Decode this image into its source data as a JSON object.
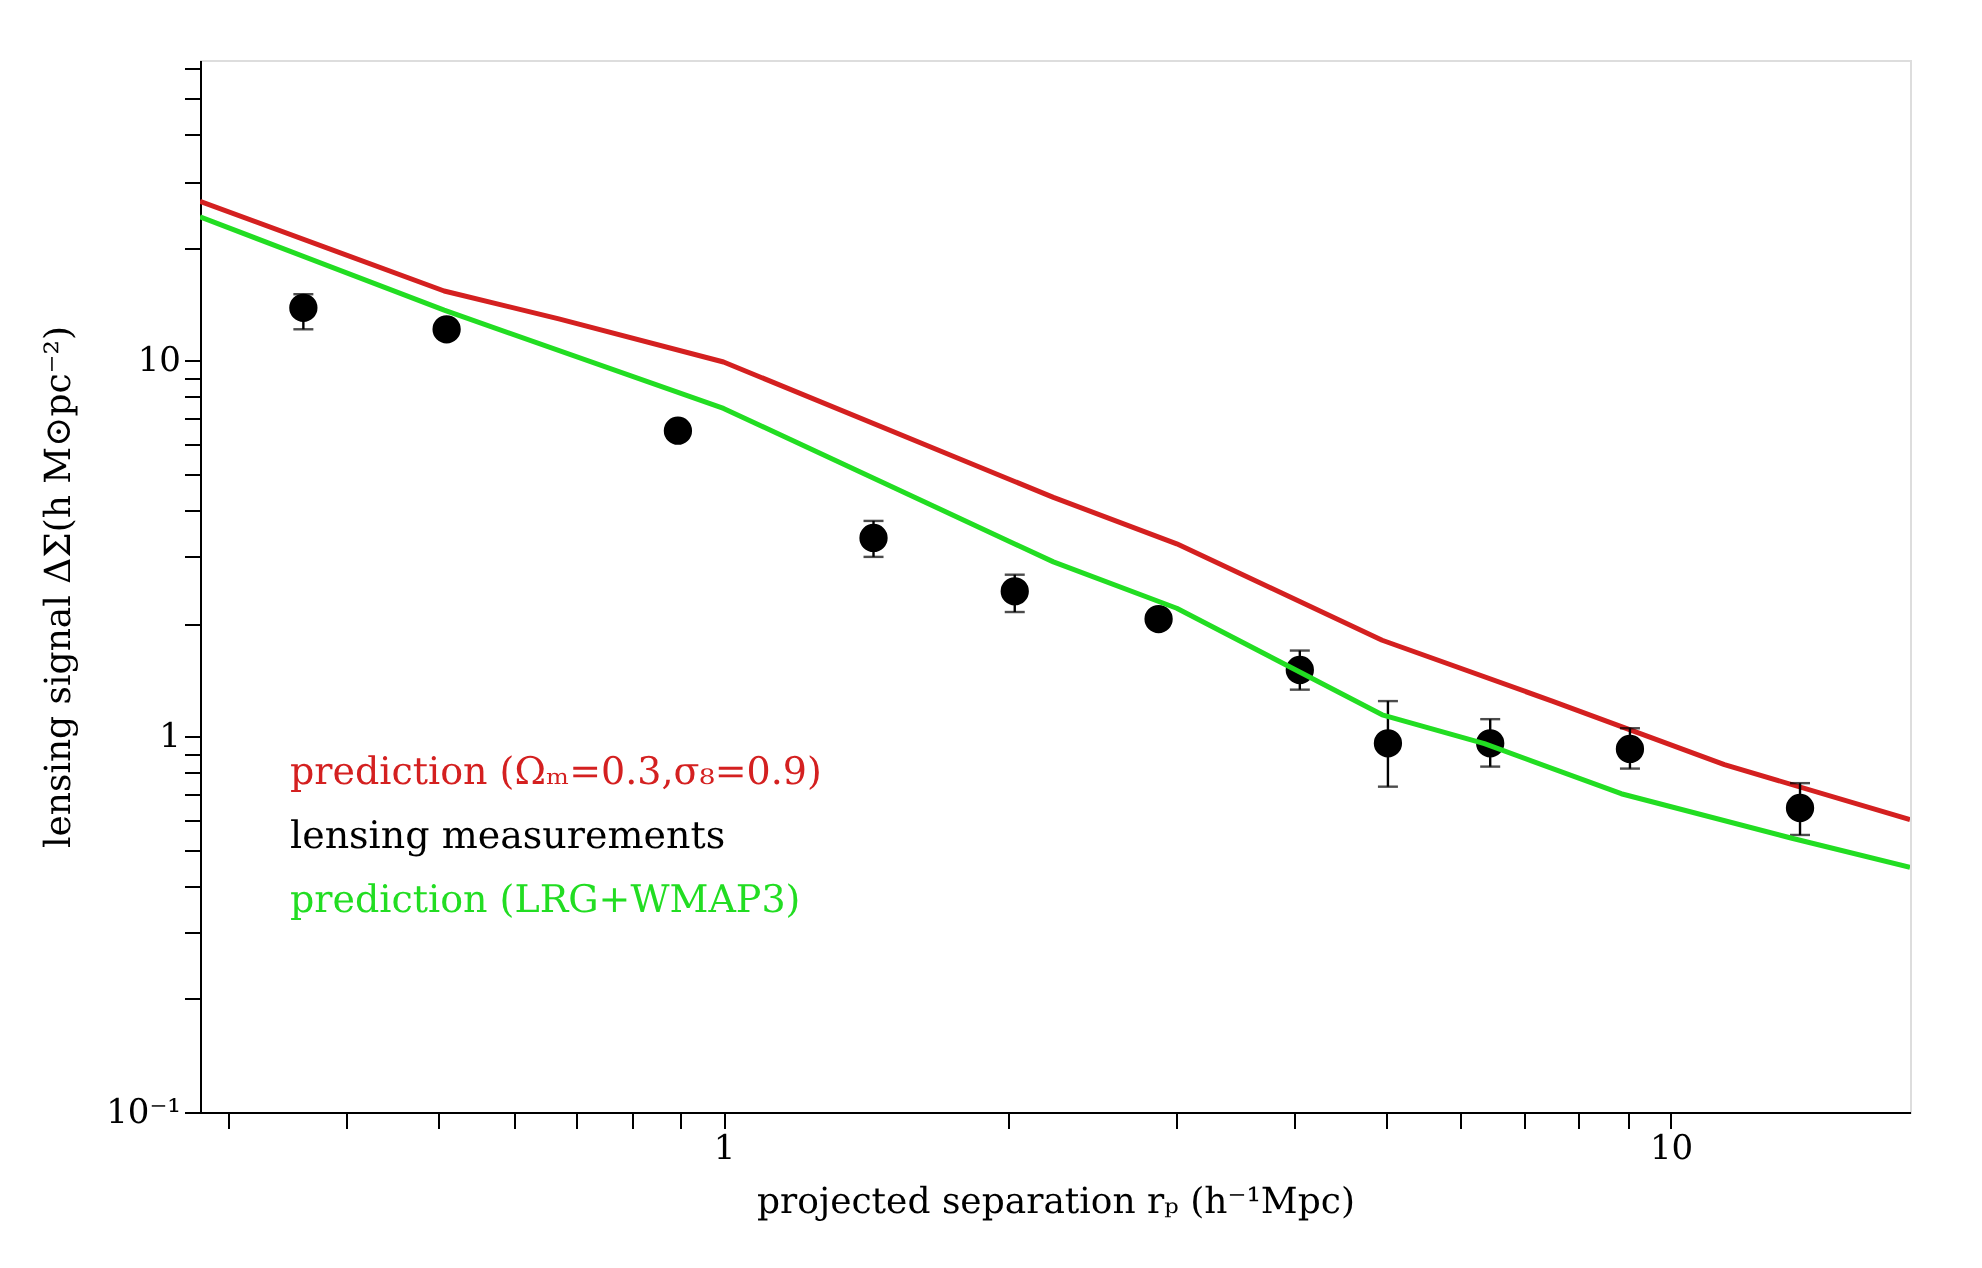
{
  "chart_data": {
    "type": "line",
    "xlabel": "projected separation rₚ (h⁻¹Mpc)",
    "ylabel": "lensing signal ΔΣ(h M⊙pc⁻²)",
    "log": "xy",
    "xlim": [
      0.28,
      17.9
    ],
    "ylim": [
      0.1,
      63
    ],
    "xticks": [
      {
        "value": 0.3,
        "label": null
      },
      {
        "value": 0.4,
        "label": null
      },
      {
        "value": 0.5,
        "label": null
      },
      {
        "value": 0.6,
        "label": null
      },
      {
        "value": 0.7,
        "label": null
      },
      {
        "value": 0.8,
        "label": null
      },
      {
        "value": 0.9,
        "label": null
      },
      1,
      {
        "value": 2,
        "label": null
      },
      {
        "value": 3,
        "label": null
      },
      {
        "value": 4,
        "label": null
      },
      {
        "value": 5,
        "label": null
      },
      {
        "value": 6,
        "label": null
      },
      {
        "value": 7,
        "label": null
      },
      {
        "value": 8,
        "label": null
      },
      {
        "value": 9,
        "label": null
      },
      10
    ],
    "yticks": [
      {
        "value": 0.1,
        "label": "10⁻¹"
      },
      {
        "value": 0.2,
        "label": null
      },
      {
        "value": 0.3,
        "label": null
      },
      {
        "value": 0.4,
        "label": null
      },
      {
        "value": 0.5,
        "label": null
      },
      {
        "value": 0.6,
        "label": null
      },
      {
        "value": 0.7,
        "label": null
      },
      {
        "value": 0.8,
        "label": null
      },
      {
        "value": 0.9,
        "label": null
      },
      1,
      {
        "value": 2,
        "label": null
      },
      {
        "value": 3,
        "label": null
      },
      {
        "value": 4,
        "label": null
      },
      {
        "value": 5,
        "label": null
      },
      {
        "value": 6,
        "label": null
      },
      {
        "value": 7,
        "label": null
      },
      {
        "value": 8,
        "label": null
      },
      {
        "value": 9,
        "label": null
      },
      10,
      {
        "value": 20,
        "label": null
      },
      {
        "value": 30,
        "label": null
      },
      {
        "value": 40,
        "label": null
      },
      {
        "value": 50,
        "label": null
      },
      {
        "value": 60,
        "label": null
      }
    ],
    "grid": false,
    "legend": "bottom left",
    "series": [
      {
        "name": "prediction (Ωₘ=0.3,σ₈=0.9)",
        "color": "#d42020",
        "line_style": "solid",
        "x": [
          0.28,
          0.507,
          0.67,
          1.0,
          2.23,
          3.01,
          4.96,
          7.5,
          11.4,
          17.9
        ],
        "values": [
          26.5,
          15.3,
          12.9,
          9.9,
          4.32,
          3.25,
          1.8,
          1.24,
          0.84,
          0.6
        ]
      },
      {
        "name": "lensing measurements",
        "color": "#000000",
        "type": "scatter",
        "marker": "circle",
        "x": [
          0.36,
          0.51,
          0.895,
          1.44,
          2.03,
          2.88,
          4.06,
          5.03,
          6.45,
          9.06,
          13.7
        ],
        "values": [
          13.8,
          12.1,
          6.5,
          3.37,
          2.43,
          2.05,
          1.5,
          0.957,
          0.957,
          0.925,
          0.644
        ],
        "errors": [
          [
            12.1,
            15.0
          ],
          null,
          null,
          [
            3.0,
            3.74
          ],
          [
            2.14,
            2.69
          ],
          null,
          [
            1.33,
            1.69
          ],
          [
            0.734,
            1.24
          ],
          [
            0.83,
            1.11
          ],
          [
            0.82,
            1.05
          ],
          [
            0.546,
            0.75
          ]
        ]
      },
      {
        "name": "prediction (LRG+WMAP3)",
        "color": "#22dd22",
        "line_style": "solid",
        "x": [
          0.28,
          0.507,
          1.0,
          2.23,
          3.01,
          4.96,
          6.36,
          8.87,
          13.4,
          17.9
        ],
        "values": [
          24.1,
          13.6,
          7.45,
          2.91,
          2.19,
          1.14,
          0.955,
          0.703,
          0.536,
          0.448
        ]
      }
    ]
  }
}
